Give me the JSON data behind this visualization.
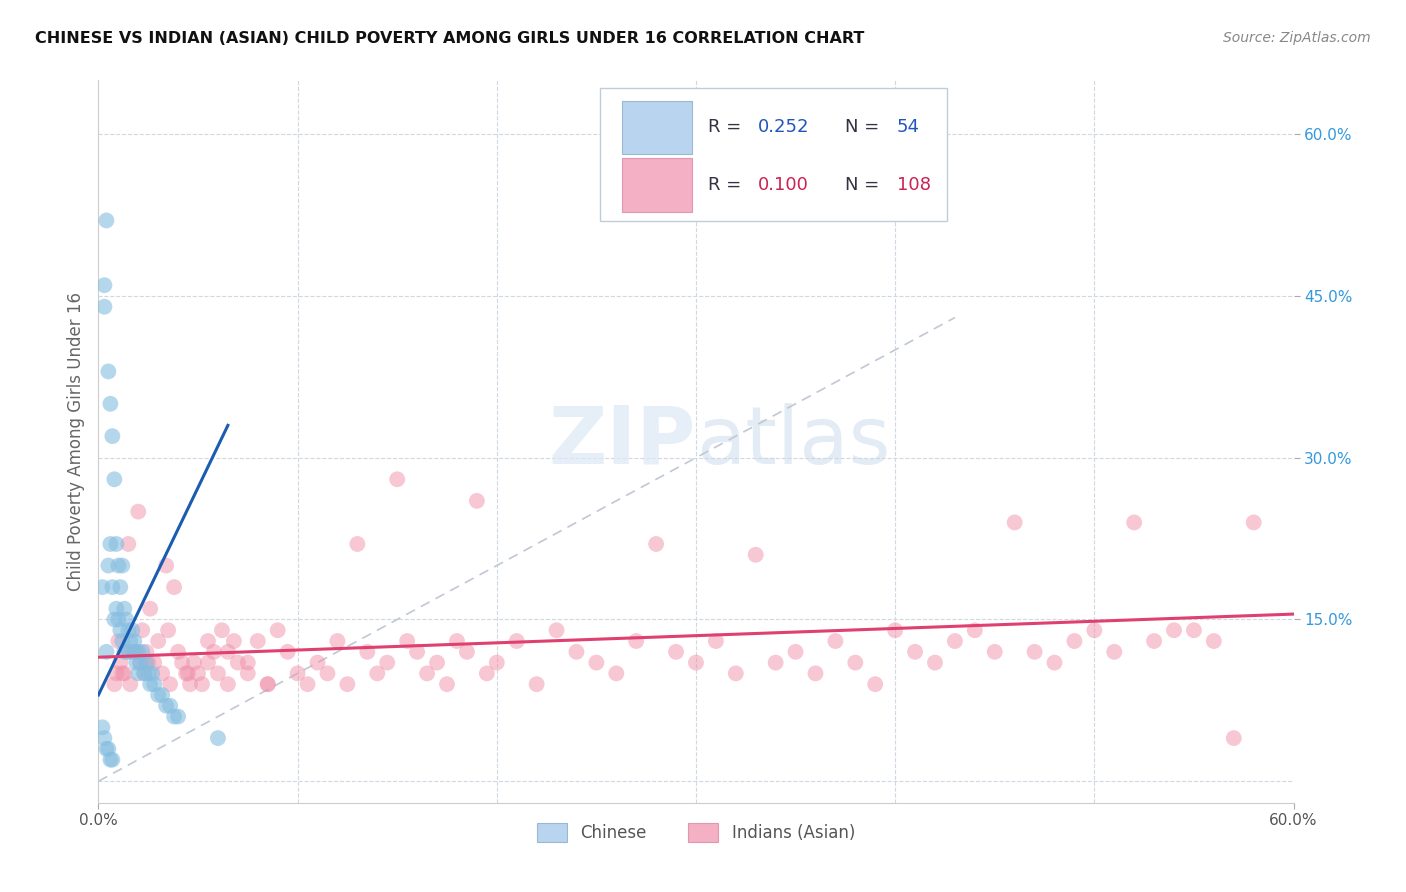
{
  "title": "CHINESE VS INDIAN (ASIAN) CHILD POVERTY AMONG GIRLS UNDER 16 CORRELATION CHART",
  "source": "Source: ZipAtlas.com",
  "ylabel": "Child Poverty Among Girls Under 16",
  "xlim": [
    0.0,
    0.6
  ],
  "ylim": [
    -0.02,
    0.65
  ],
  "chinese_color": "#85bde0",
  "indian_color": "#f090aa",
  "chinese_trend_color": "#1a5cb0",
  "indian_trend_color": "#e04070",
  "dashed_diag_color": "#c0c8d4",
  "watermark_zip": "ZIP",
  "watermark_atlas": "atlas",
  "background_color": "#ffffff",
  "grid_color": "#d0d8e4",
  "legend_R1": "0.252",
  "legend_N1": "54",
  "legend_R2": "0.100",
  "legend_N2": "108",
  "chinese_x": [
    0.002,
    0.003,
    0.003,
    0.004,
    0.004,
    0.005,
    0.005,
    0.006,
    0.006,
    0.007,
    0.007,
    0.008,
    0.008,
    0.009,
    0.009,
    0.01,
    0.01,
    0.011,
    0.011,
    0.012,
    0.012,
    0.013,
    0.013,
    0.014,
    0.015,
    0.015,
    0.016,
    0.017,
    0.018,
    0.018,
    0.019,
    0.02,
    0.02,
    0.021,
    0.022,
    0.023,
    0.024,
    0.025,
    0.026,
    0.027,
    0.028,
    0.03,
    0.032,
    0.034,
    0.036,
    0.038,
    0.04,
    0.002,
    0.003,
    0.004,
    0.005,
    0.006,
    0.007,
    0.06
  ],
  "chinese_y": [
    0.18,
    0.44,
    0.46,
    0.52,
    0.12,
    0.2,
    0.38,
    0.35,
    0.22,
    0.32,
    0.18,
    0.28,
    0.15,
    0.22,
    0.16,
    0.2,
    0.15,
    0.18,
    0.14,
    0.2,
    0.13,
    0.16,
    0.12,
    0.15,
    0.14,
    0.12,
    0.13,
    0.14,
    0.12,
    0.13,
    0.11,
    0.12,
    0.1,
    0.11,
    0.12,
    0.1,
    0.11,
    0.1,
    0.09,
    0.1,
    0.09,
    0.08,
    0.08,
    0.07,
    0.07,
    0.06,
    0.06,
    0.05,
    0.04,
    0.03,
    0.03,
    0.02,
    0.02,
    0.04
  ],
  "indian_x": [
    0.01,
    0.012,
    0.015,
    0.018,
    0.02,
    0.022,
    0.024,
    0.026,
    0.028,
    0.03,
    0.032,
    0.034,
    0.036,
    0.038,
    0.04,
    0.042,
    0.044,
    0.046,
    0.048,
    0.05,
    0.052,
    0.055,
    0.058,
    0.06,
    0.062,
    0.065,
    0.068,
    0.07,
    0.075,
    0.08,
    0.085,
    0.09,
    0.095,
    0.1,
    0.105,
    0.11,
    0.115,
    0.12,
    0.125,
    0.13,
    0.135,
    0.14,
    0.145,
    0.15,
    0.155,
    0.16,
    0.165,
    0.17,
    0.175,
    0.18,
    0.185,
    0.19,
    0.195,
    0.2,
    0.21,
    0.22,
    0.23,
    0.24,
    0.25,
    0.26,
    0.27,
    0.28,
    0.29,
    0.3,
    0.31,
    0.32,
    0.33,
    0.34,
    0.35,
    0.36,
    0.37,
    0.38,
    0.39,
    0.4,
    0.41,
    0.42,
    0.43,
    0.44,
    0.45,
    0.46,
    0.47,
    0.48,
    0.49,
    0.5,
    0.51,
    0.52,
    0.53,
    0.54,
    0.55,
    0.56,
    0.57,
    0.58,
    0.015,
    0.025,
    0.035,
    0.045,
    0.055,
    0.065,
    0.075,
    0.085,
    0.008,
    0.009,
    0.011,
    0.013,
    0.016,
    0.019,
    0.021,
    0.023
  ],
  "indian_y": [
    0.13,
    0.1,
    0.22,
    0.12,
    0.25,
    0.14,
    0.12,
    0.16,
    0.11,
    0.13,
    0.1,
    0.2,
    0.09,
    0.18,
    0.12,
    0.11,
    0.1,
    0.09,
    0.11,
    0.1,
    0.09,
    0.11,
    0.12,
    0.1,
    0.14,
    0.09,
    0.13,
    0.11,
    0.1,
    0.13,
    0.09,
    0.14,
    0.12,
    0.1,
    0.09,
    0.11,
    0.1,
    0.13,
    0.09,
    0.22,
    0.12,
    0.1,
    0.11,
    0.28,
    0.13,
    0.12,
    0.1,
    0.11,
    0.09,
    0.13,
    0.12,
    0.26,
    0.1,
    0.11,
    0.13,
    0.09,
    0.14,
    0.12,
    0.11,
    0.1,
    0.13,
    0.22,
    0.12,
    0.11,
    0.13,
    0.1,
    0.21,
    0.11,
    0.12,
    0.1,
    0.13,
    0.11,
    0.09,
    0.14,
    0.12,
    0.11,
    0.13,
    0.14,
    0.12,
    0.24,
    0.12,
    0.11,
    0.13,
    0.14,
    0.12,
    0.24,
    0.13,
    0.14,
    0.14,
    0.13,
    0.04,
    0.24,
    0.12,
    0.11,
    0.14,
    0.1,
    0.13,
    0.12,
    0.11,
    0.09,
    0.09,
    0.1,
    0.11,
    0.1,
    0.09,
    0.12,
    0.11,
    0.1
  ]
}
